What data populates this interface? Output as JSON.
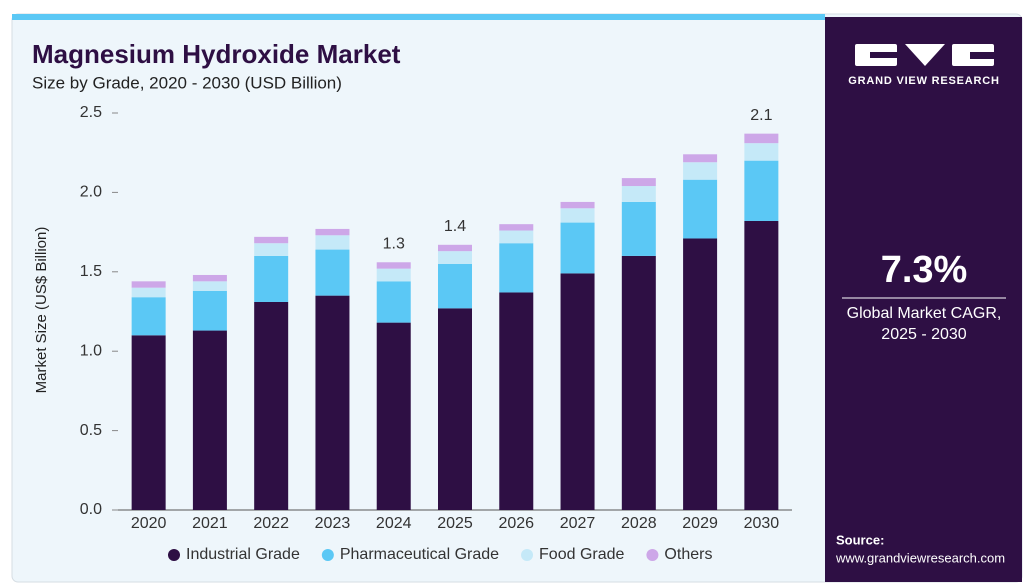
{
  "chart_data": {
    "type": "stacked-bar",
    "title": "Magnesium Hydroxide Market",
    "subtitle": "Size by Grade, 2020 - 2030 (USD Billion)",
    "y_label": "Market Size (US$ Billion)",
    "categories": [
      "2020",
      "2021",
      "2022",
      "2023",
      "2024",
      "2025",
      "2026",
      "2027",
      "2028",
      "2029",
      "2030"
    ],
    "series": [
      {
        "name": "Industrial Grade",
        "color": "#2e0f44",
        "values": [
          1.1,
          1.13,
          1.31,
          1.35,
          1.18,
          1.27,
          1.37,
          1.49,
          1.6,
          1.71,
          1.82
        ]
      },
      {
        "name": "Pharmaceutical Grade",
        "color": "#5bc8f5",
        "values": [
          0.24,
          0.25,
          0.29,
          0.29,
          0.26,
          0.28,
          0.31,
          0.32,
          0.34,
          0.37,
          0.38
        ]
      },
      {
        "name": "Food Grade",
        "color": "#c5e9f8",
        "values": [
          0.06,
          0.06,
          0.08,
          0.09,
          0.08,
          0.08,
          0.08,
          0.09,
          0.1,
          0.11,
          0.11
        ]
      },
      {
        "name": "Others",
        "color": "#cda7e8",
        "values": [
          0.04,
          0.04,
          0.04,
          0.04,
          0.04,
          0.04,
          0.04,
          0.04,
          0.05,
          0.05,
          0.06
        ]
      }
    ],
    "annotations": [
      {
        "category": "2024",
        "value": 1.3
      },
      {
        "category": "2025",
        "value": 1.4
      },
      {
        "category": "2030",
        "value": 2.1
      }
    ],
    "ylim": [
      0,
      2.5
    ],
    "yticks": [
      {
        "value": 0,
        "label": "0.0"
      },
      0.5,
      {
        "value": 1,
        "label": "1.0"
      },
      1.5,
      {
        "value": 2,
        "label": "2.0"
      },
      2.5
    ],
    "grid": false
  },
  "panel": {
    "brand": "GRAND VIEW RESEARCH",
    "cagr": "7.3%",
    "cagr_label_1": "Global Market CAGR,",
    "cagr_label_2": "2025 - 2030",
    "source_label": "Source:",
    "source_url": "www.grandviewresearch.com"
  }
}
